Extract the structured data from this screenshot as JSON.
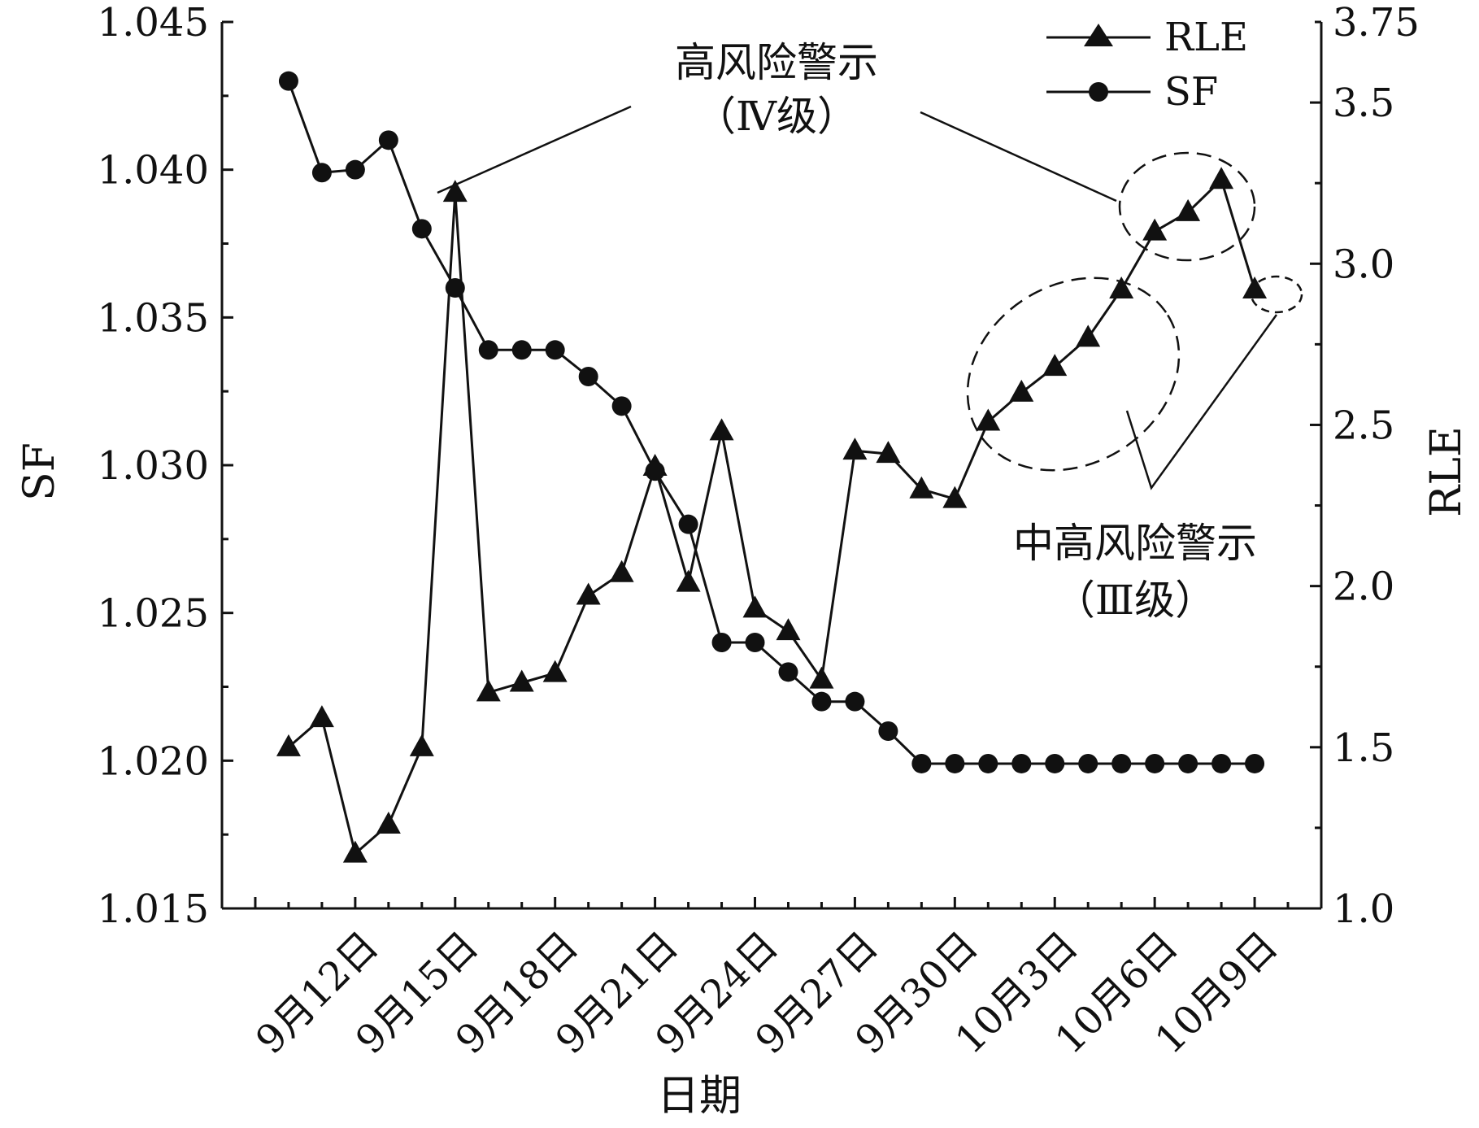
{
  "chart_data": {
    "type": "line",
    "xlabel": "日期",
    "ylabel_left": "SF",
    "ylabel_right": "RLE",
    "ylim_left": [
      1.015,
      1.045
    ],
    "ylim_right": [
      1.0,
      3.75
    ],
    "xlim": [
      8,
      41
    ],
    "grid": false,
    "legend_position": "top-right",
    "left_ticks": [
      "1.015",
      "1.020",
      "1.025",
      "1.030",
      "1.035",
      "1.040",
      "1.045"
    ],
    "right_ticks": [
      "1.0",
      "1.5",
      "2.0",
      "2.5",
      "3.0",
      "3.5",
      "3.75"
    ],
    "x_ticks": [
      {
        "x": 12,
        "label": "9月12日"
      },
      {
        "x": 15,
        "label": "9月15日"
      },
      {
        "x": 18,
        "label": "9月18日"
      },
      {
        "x": 21,
        "label": "9月21日"
      },
      {
        "x": 24,
        "label": "9月24日"
      },
      {
        "x": 27,
        "label": "9月27日"
      },
      {
        "x": 30,
        "label": "9月30日"
      },
      {
        "x": 33,
        "label": "10月3日"
      },
      {
        "x": 36,
        "label": "10月6日"
      },
      {
        "x": 39,
        "label": "10月9日"
      }
    ],
    "x": [
      10,
      11,
      12,
      13,
      14,
      15,
      16,
      17,
      18,
      19,
      20,
      21,
      22,
      23,
      24,
      25,
      26,
      27,
      28,
      29,
      30,
      31,
      32,
      33,
      34,
      35,
      36,
      37,
      38,
      39
    ],
    "series": [
      {
        "name": "RLE",
        "axis": "right",
        "marker": "triangle",
        "values": [
          1.5,
          1.59,
          1.17,
          1.26,
          1.5,
          3.22,
          1.67,
          1.7,
          1.73,
          1.97,
          2.04,
          2.37,
          2.01,
          2.48,
          1.93,
          1.86,
          1.71,
          2.42,
          2.41,
          2.3,
          2.27,
          2.51,
          2.6,
          2.68,
          2.77,
          2.92,
          3.1,
          3.16,
          3.26,
          2.92
        ]
      },
      {
        "name": "SF",
        "axis": "left",
        "marker": "circle",
        "values": [
          1.043,
          1.0399,
          1.04,
          1.041,
          1.038,
          1.036,
          1.0339,
          1.0339,
          1.0339,
          1.033,
          1.032,
          1.0298,
          1.028,
          1.024,
          1.024,
          1.023,
          1.022,
          1.022,
          1.021,
          1.0199,
          1.0199,
          1.0199,
          1.0199,
          1.0199,
          1.0199,
          1.0199,
          1.0199,
          1.0199,
          1.0199,
          1.0199
        ]
      }
    ],
    "annotations": [
      {
        "name": "high-risk",
        "line1": "高风险警示",
        "line2": "（Ⅳ级）"
      },
      {
        "name": "mid-high-risk",
        "line1": "中高风险警示",
        "line2": "（Ⅲ级）"
      }
    ]
  }
}
